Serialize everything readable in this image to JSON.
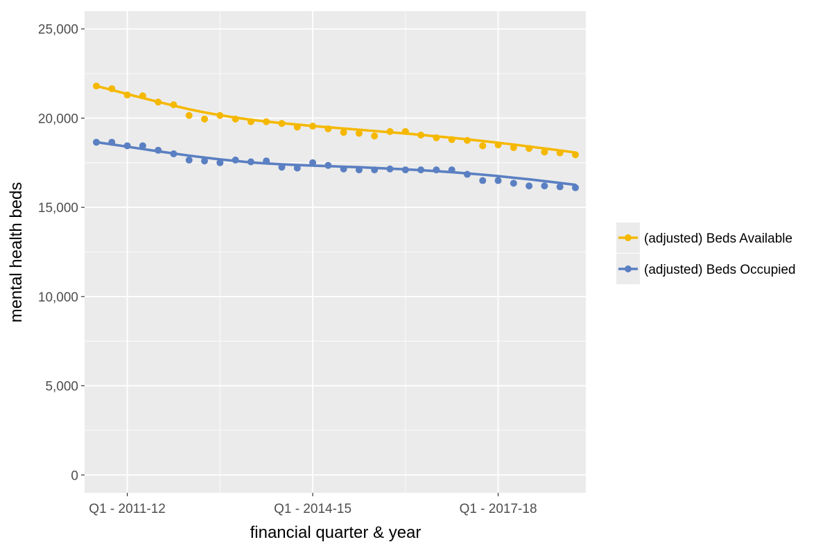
{
  "chart_data": {
    "type": "line",
    "xlabel": "financial quarter & year",
    "ylabel": "mental health beds",
    "ylim": [
      -1000,
      26000
    ],
    "yticks": [
      0,
      5000,
      10000,
      15000,
      20000,
      25000
    ],
    "ytick_labels": [
      "0",
      "5,000",
      "10,000",
      "15,000",
      "20,000",
      "25,000"
    ],
    "x_tick_labels": [
      {
        "label": "Q1 - 2011-12",
        "index": 2
      },
      {
        "label": "Q1 - 2014-15",
        "index": 14
      },
      {
        "label": "Q1 - 2017-18",
        "index": 26
      }
    ],
    "x_count": 32,
    "grid": true,
    "legend_position": "right",
    "series": [
      {
        "name": "(adjusted) Beds Available",
        "color": "#f5b800",
        "values": [
          21800,
          21650,
          21300,
          21250,
          20900,
          20750,
          20150,
          19950,
          20150,
          19950,
          19800,
          19800,
          19700,
          19500,
          19550,
          19400,
          19200,
          19150,
          19000,
          19250,
          19250,
          19050,
          18900,
          18800,
          18750,
          18450,
          18500,
          18350,
          18300,
          18100,
          18050,
          17950
        ],
        "trend": [
          21800,
          21580,
          21350,
          21130,
          20910,
          20700,
          20500,
          20320,
          20170,
          20030,
          19910,
          19810,
          19720,
          19640,
          19560,
          19490,
          19420,
          19350,
          19280,
          19210,
          19140,
          19060,
          18980,
          18900,
          18810,
          18720,
          18620,
          18520,
          18410,
          18300,
          18190,
          18070
        ]
      },
      {
        "name": "(adjusted) Beds Occupied",
        "color": "#5a7fc2",
        "values": [
          18650,
          18650,
          18450,
          18450,
          18200,
          18000,
          17650,
          17600,
          17500,
          17650,
          17550,
          17600,
          17250,
          17200,
          17500,
          17350,
          17150,
          17100,
          17100,
          17150,
          17100,
          17100,
          17100,
          17100,
          16850,
          16500,
          16500,
          16350,
          16200,
          16200,
          16150,
          16100
        ],
        "trend": [
          18650,
          18530,
          18400,
          18270,
          18140,
          18020,
          17900,
          17790,
          17690,
          17600,
          17520,
          17460,
          17410,
          17370,
          17340,
          17310,
          17280,
          17250,
          17210,
          17170,
          17130,
          17080,
          17030,
          16970,
          16900,
          16830,
          16750,
          16660,
          16570,
          16470,
          16370,
          16260
        ]
      }
    ]
  }
}
